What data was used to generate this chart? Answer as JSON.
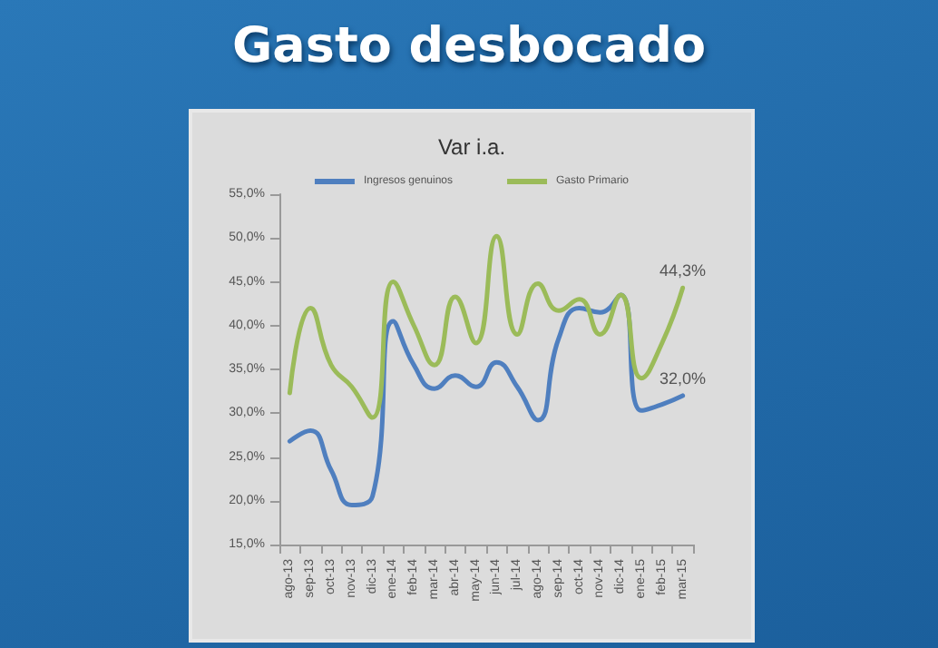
{
  "chart_data": {
    "type": "line",
    "title": "Gasto desbocado",
    "subtitle": "Var i.a.",
    "categories": [
      "ago-13",
      "sep-13",
      "oct-13",
      "nov-13",
      "dic-13",
      "ene-14",
      "feb-14",
      "mar-14",
      "abr-14",
      "may-14",
      "jun-14",
      "jul-14",
      "ago-14",
      "sep-14",
      "oct-14",
      "nov-14",
      "dic-14",
      "ene-15",
      "feb-15",
      "mar-15"
    ],
    "series": [
      {
        "name": "Ingresos genuinos",
        "color": "#4f7fbf",
        "values": [
          26.8,
          28,
          23.5,
          19.5,
          20.5,
          40.5,
          35.5,
          32.8,
          34.3,
          33,
          35.8,
          33,
          29.2,
          38.5,
          42,
          41.5,
          43.5,
          30.3,
          31,
          32.0
        ],
        "value_labels": [
          null,
          null,
          null,
          null,
          null,
          null,
          null,
          null,
          null,
          null,
          null,
          null,
          null,
          null,
          null,
          null,
          null,
          null,
          null,
          "32,0%"
        ]
      },
      {
        "name": "Gasto Primario",
        "color": "#9bbb59",
        "values": [
          32.3,
          42,
          35.5,
          33,
          29.5,
          45,
          40,
          35.5,
          43.3,
          38,
          50.2,
          39,
          44.8,
          41.7,
          43,
          39,
          43.5,
          34,
          38,
          44.3
        ],
        "value_labels": [
          null,
          null,
          null,
          null,
          null,
          null,
          null,
          null,
          null,
          null,
          null,
          null,
          null,
          null,
          null,
          null,
          null,
          null,
          null,
          "44,3%"
        ]
      }
    ],
    "ylim": [
      15,
      55
    ],
    "yticks": [
      {
        "value": 15,
        "label": "15,0%"
      },
      {
        "value": 20,
        "label": "20,0%"
      },
      {
        "value": 25,
        "label": "25,0%"
      },
      {
        "value": 30,
        "label": "30,0%"
      },
      {
        "value": 35,
        "label": "35,0%"
      },
      {
        "value": 40,
        "label": "40,0%"
      },
      {
        "value": 45,
        "label": "45,0%"
      },
      {
        "value": 50,
        "label": "50,0%"
      },
      {
        "value": 55,
        "label": "55,0%"
      }
    ],
    "grid": false,
    "legend": "top",
    "marker": "none",
    "line_style": "solid"
  }
}
